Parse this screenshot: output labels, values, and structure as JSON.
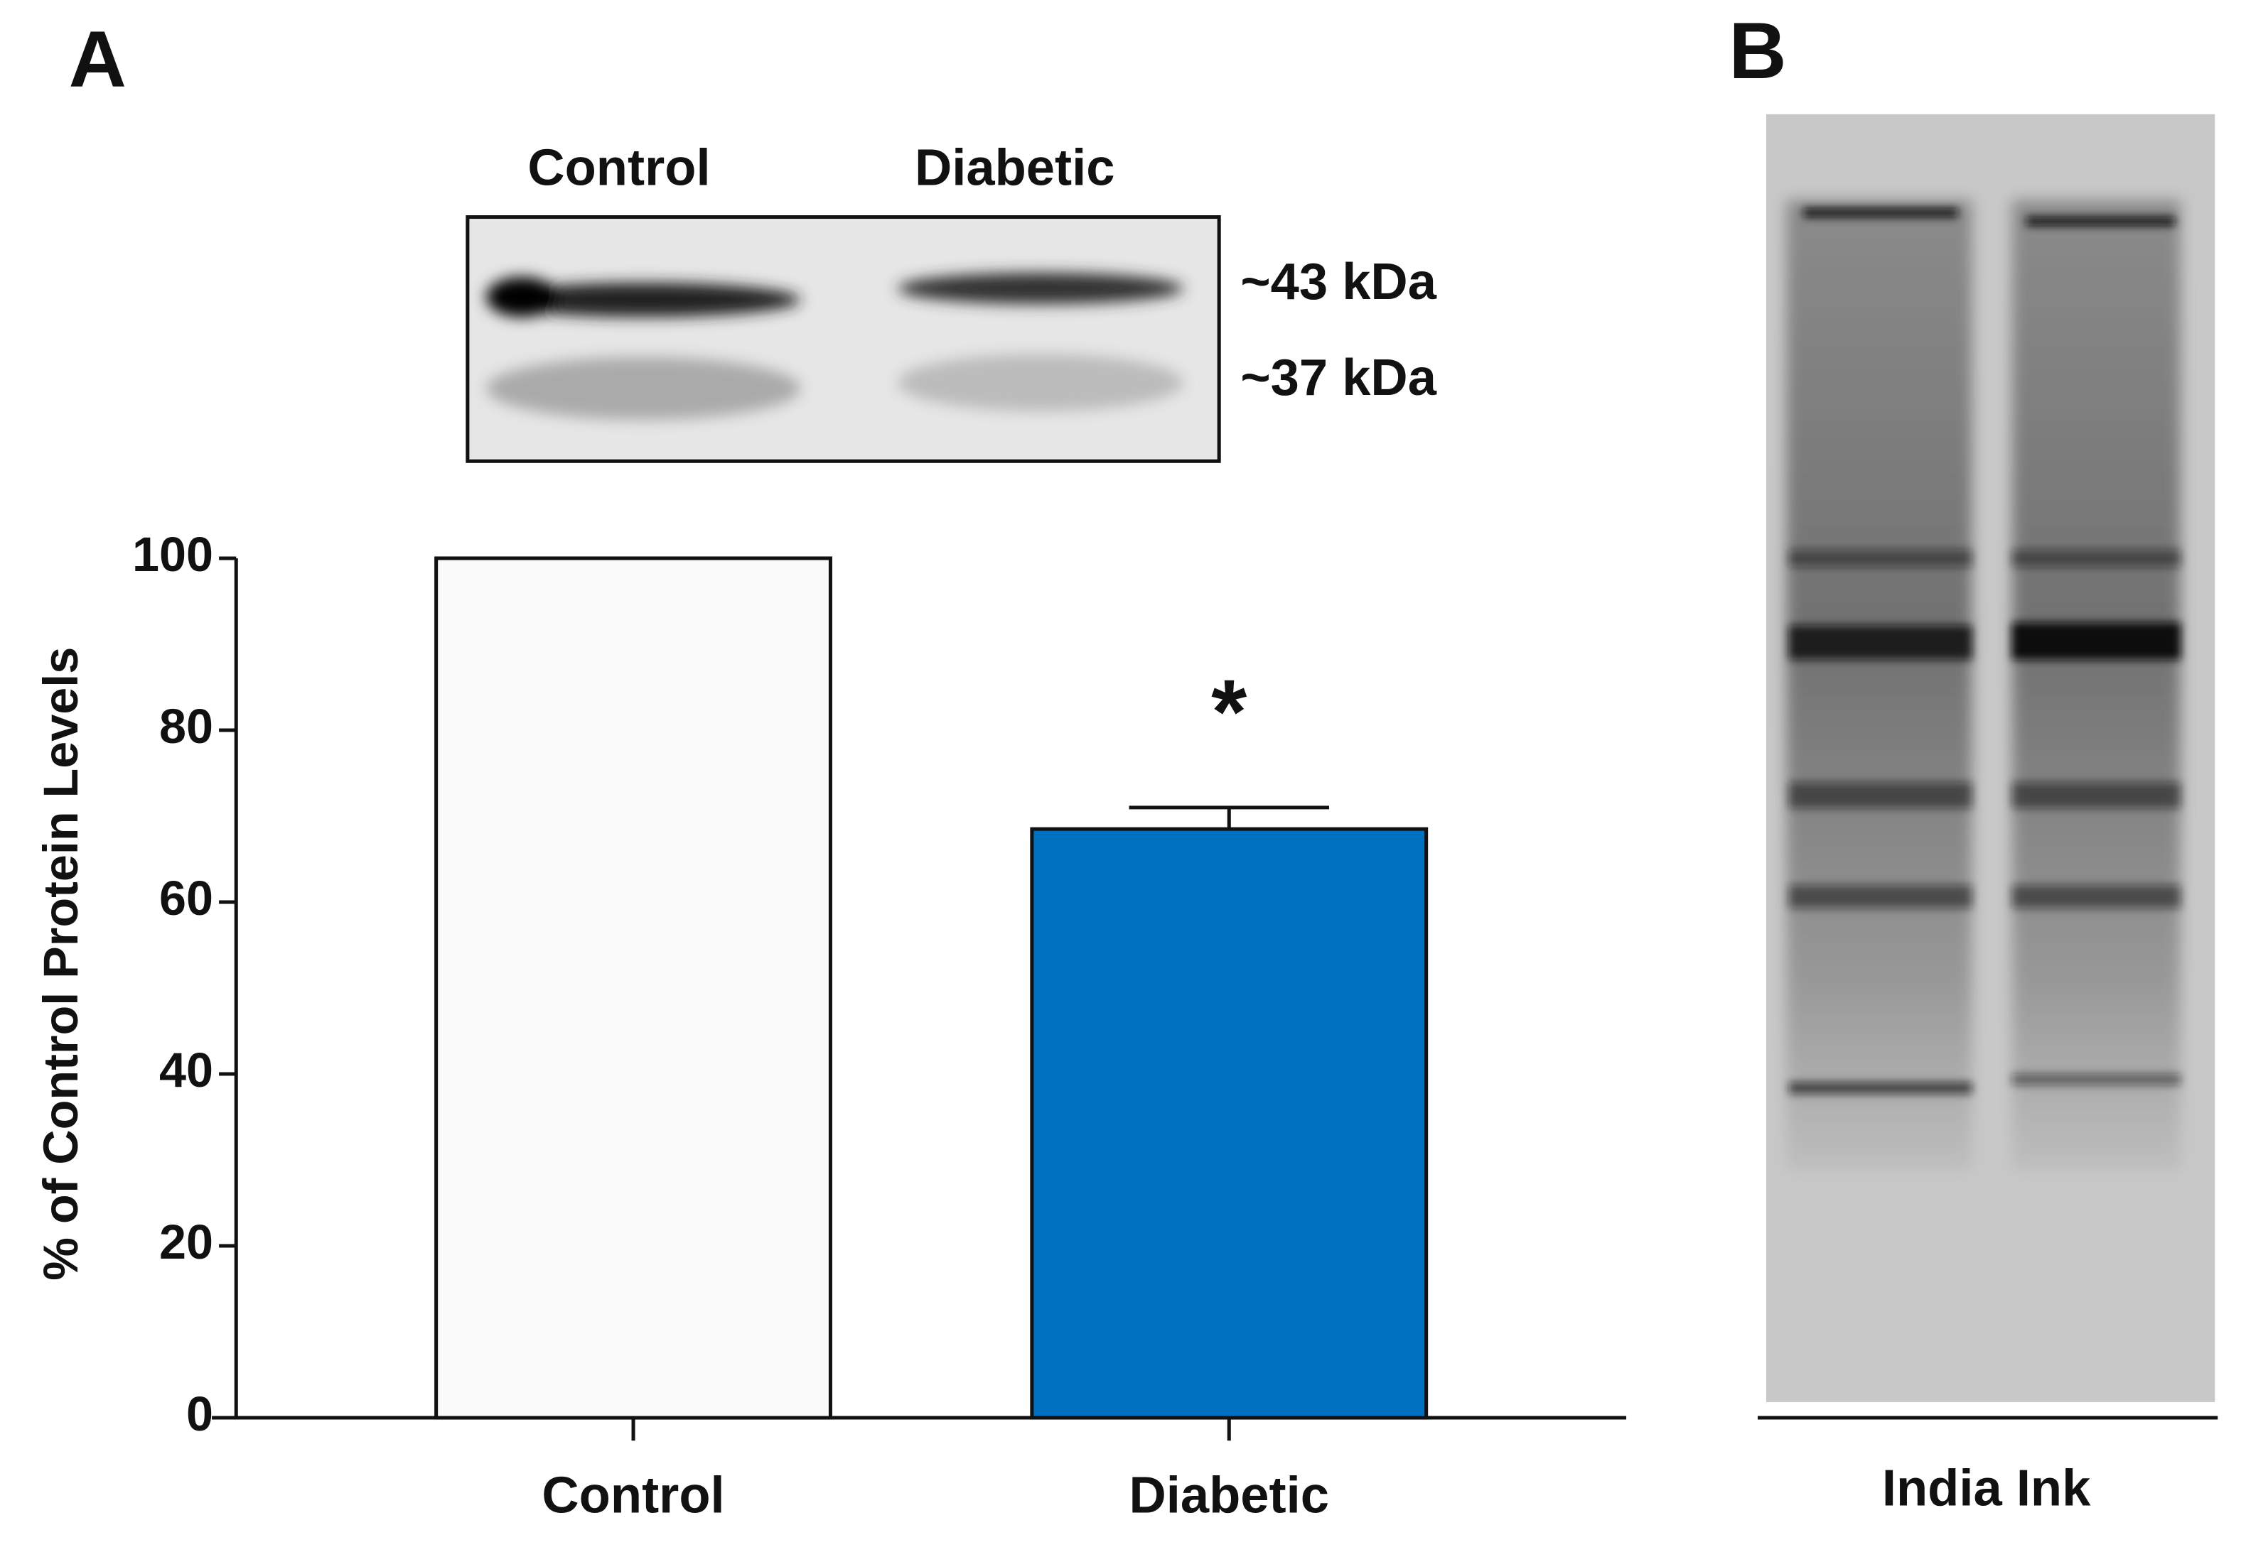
{
  "chart_data": {
    "type": "bar",
    "ylabel": "% of Control Protein Levels",
    "categories": [
      "Control",
      "Diabetic"
    ],
    "values": [
      100,
      68.5
    ],
    "errors": [
      null,
      2.5
    ],
    "colors": [
      "#fafafa",
      "#0070c0"
    ],
    "annotation": "*",
    "ylim": [
      0,
      100
    ],
    "yticks": [
      0,
      20,
      40,
      60,
      80,
      100
    ]
  },
  "panels": {
    "a": "A",
    "b": "B"
  },
  "blot": {
    "lanes": [
      "Control",
      "Diabetic"
    ],
    "markers": [
      "~43 kDa",
      "~37 kDa"
    ]
  },
  "stain": {
    "label": "India Ink"
  }
}
